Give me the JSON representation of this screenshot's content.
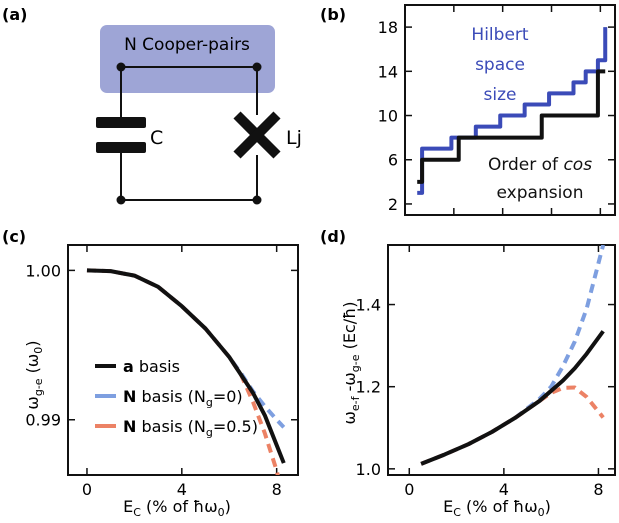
{
  "panels": {
    "a": {
      "label": "(a)",
      "island_label": "N Cooper-pairs",
      "capacitor_label": "C",
      "junction_label": "Lj"
    },
    "b": {
      "label": "(b)"
    },
    "c": {
      "label": "(c)"
    },
    "d": {
      "label": "(d)"
    }
  },
  "colors": {
    "black": "#111111",
    "blue": "#3b4bb8",
    "light_blue": "#7e9fe0",
    "salmon": "#ec8265",
    "island_fill": "#9ea5d6"
  },
  "chart_data": [
    {
      "panel": "b",
      "type": "line",
      "title": "",
      "xlabel": "",
      "ylabel": "",
      "xlim": [
        0,
        8.6
      ],
      "ylim": [
        1,
        20
      ],
      "yticks": [
        2,
        6,
        10,
        14,
        18
      ],
      "ytick_labels": [
        "2",
        "6",
        "10",
        "14",
        "18"
      ],
      "x_tick_positions": [
        0,
        2,
        4,
        6,
        8
      ],
      "series": [
        {
          "name": "Hilbert space size",
          "label_lines": [
            "Hilbert",
            "space",
            "size"
          ],
          "color": "#3b4bb8",
          "step": true,
          "x": [
            0.5,
            0.7,
            1.3,
            1.9,
            2.4,
            2.9,
            3.3,
            3.9,
            4.3,
            4.9,
            5.4,
            5.9,
            6.4,
            6.9,
            7.4,
            7.9,
            8.2
          ],
          "values": [
            3,
            7,
            7,
            8,
            8,
            9,
            9,
            10,
            10,
            11,
            11,
            12,
            12,
            13,
            14,
            15,
            18
          ]
        },
        {
          "name": "Order of cos expansion",
          "label_lines": [
            "Order of cos",
            "expansion"
          ],
          "color": "#111111",
          "step": true,
          "x": [
            0.5,
            0.7,
            2.2,
            5.6,
            7.9,
            8.2
          ],
          "values": [
            4,
            6,
            8,
            10,
            14,
            14
          ]
        }
      ]
    },
    {
      "panel": "c",
      "type": "line",
      "title": "",
      "xlabel": "E_C (% of ħω_0)",
      "ylabel": "ω_g-e (ω_0)",
      "xlim": [
        -0.8,
        8.9
      ],
      "ylim": [
        0.9863,
        1.0017
      ],
      "xticks": [
        0,
        4,
        8
      ],
      "yticks": [
        1.0,
        0.99
      ],
      "ytick_labels": [
        "1.00",
        "0.99"
      ],
      "legend_position": "lower-left",
      "series": [
        {
          "name": "a basis",
          "legend_bold": "a",
          "legend_rest": " basis",
          "color": "#111111",
          "dash": false,
          "x": [
            0,
            1,
            2,
            3,
            4,
            5,
            6,
            7,
            7.5,
            8,
            8.3
          ],
          "values": [
            1.0,
            0.99995,
            0.99965,
            0.9989,
            0.9976,
            0.9961,
            0.9942,
            0.9918,
            0.9903,
            0.9883,
            0.9871
          ]
        },
        {
          "name": "N basis (N_g=0)",
          "legend_bold": "N",
          "legend_rest": " basis (N",
          "legend_sub": "g",
          "legend_tail": "=0)",
          "color": "#7e9fe0",
          "dash": true,
          "x": [
            0,
            1,
            2,
            3,
            4,
            5,
            6,
            6.5,
            7,
            7.5,
            8,
            8.3
          ],
          "values": [
            1.0,
            0.99995,
            0.99965,
            0.9989,
            0.9976,
            0.9961,
            0.9942,
            0.9931,
            0.9919,
            0.9909,
            0.99,
            0.9895
          ]
        },
        {
          "name": "N basis (N_g=0.5)",
          "legend_bold": "N",
          "legend_rest": " basis (N",
          "legend_sub": "g",
          "legend_tail": "=0.5)",
          "color": "#ec8265",
          "dash": true,
          "x": [
            0,
            1,
            2,
            3,
            4,
            5,
            6,
            6.5,
            7,
            7.5,
            8,
            8.3
          ],
          "values": [
            1.0,
            0.99995,
            0.99965,
            0.9989,
            0.9976,
            0.9961,
            0.9942,
            0.993,
            0.9912,
            0.9891,
            0.9866,
            0.9846
          ]
        }
      ]
    },
    {
      "panel": "d",
      "type": "line",
      "title": "",
      "xlabel": "E_C (% of ħω_0)",
      "ylabel": "ω_e-f − ω_g-e (Ec/ħ)",
      "xlim": [
        -0.9,
        8.7
      ],
      "ylim": [
        0.985,
        1.545
      ],
      "xticks": [
        0,
        4,
        8
      ],
      "yticks": [
        1.0,
        1.2,
        1.4
      ],
      "ytick_labels": [
        "1.0",
        "1.2",
        "1.4"
      ],
      "series": [
        {
          "name": "a basis",
          "color": "#111111",
          "dash": false,
          "x": [
            0.5,
            1.5,
            2.5,
            3.5,
            4.5,
            5.5,
            6.0,
            6.5,
            7.0,
            7.5,
            8.2
          ],
          "values": [
            1.012,
            1.035,
            1.06,
            1.09,
            1.125,
            1.165,
            1.19,
            1.215,
            1.245,
            1.28,
            1.335
          ]
        },
        {
          "name": "N basis (N_g=0)",
          "color": "#7e9fe0",
          "dash": true,
          "x": [
            0.5,
            1.5,
            2.5,
            3.5,
            4.5,
            5.5,
            6.0,
            6.5,
            7.0,
            7.5,
            8.2
          ],
          "values": [
            1.012,
            1.035,
            1.06,
            1.09,
            1.125,
            1.17,
            1.2,
            1.25,
            1.31,
            1.39,
            1.545
          ]
        },
        {
          "name": "N basis (N_g=0.5)",
          "color": "#ec8265",
          "dash": true,
          "x": [
            0.5,
            1.5,
            2.5,
            3.5,
            4.5,
            5.5,
            6.0,
            6.5,
            7.0,
            7.5,
            8.2
          ],
          "values": [
            1.012,
            1.035,
            1.06,
            1.09,
            1.125,
            1.165,
            1.185,
            1.197,
            1.198,
            1.175,
            1.125
          ]
        }
      ]
    }
  ]
}
